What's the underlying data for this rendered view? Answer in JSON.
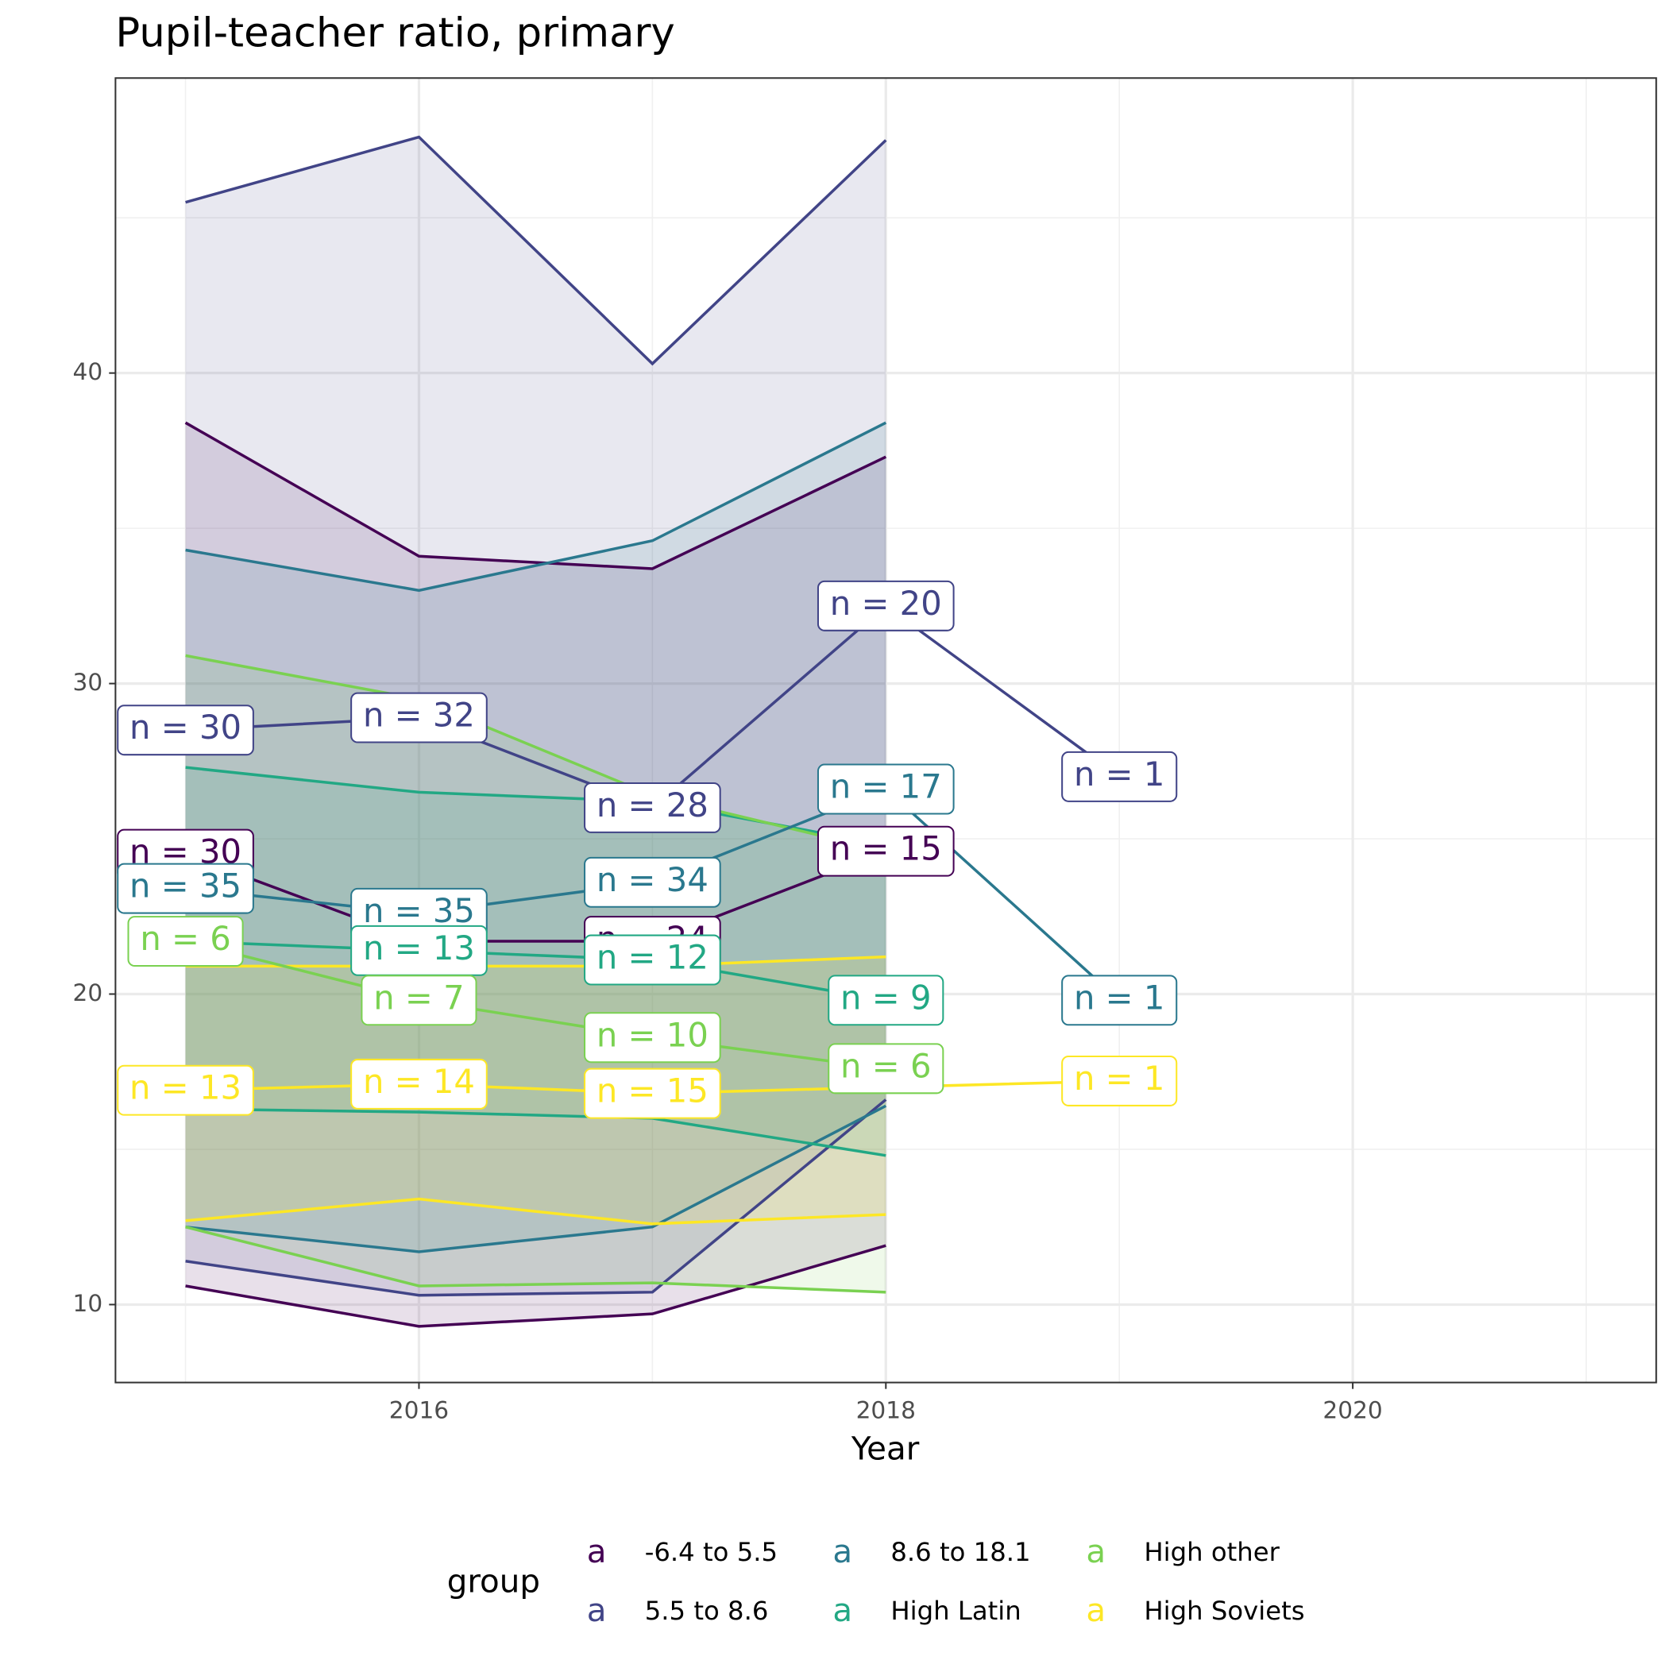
{
  "chart_data": {
    "type": "line",
    "title": "Pupil-teacher ratio, primary",
    "x_label": "Year",
    "x": [
      2015,
      2016,
      2017,
      2018,
      2019
    ],
    "xlim": [
      2014.7,
      2021.3
    ],
    "xticks": [
      2016,
      2018,
      2020
    ],
    "xminor": [
      2015,
      2017,
      2019,
      2021
    ],
    "ylim": [
      7.49,
      49.5
    ],
    "yticks": [
      10,
      20,
      30,
      40
    ],
    "yminor": [
      15,
      25,
      35,
      45
    ],
    "grid": true,
    "legend_title": "group",
    "legend_key_text": "a",
    "legend_position": "bottom",
    "series": [
      {
        "name": "-6.4 to 5.5",
        "color": "#440154",
        "values": [
          24.5,
          21.7,
          21.7,
          24.6,
          null
        ],
        "labels": [
          "n = 30",
          null,
          "n = 24",
          "n = 15",
          null
        ],
        "upper": [
          38.4,
          34.1,
          33.7,
          37.3,
          null
        ],
        "lower": [
          10.6,
          9.3,
          9.7,
          11.9,
          null
        ]
      },
      {
        "name": "5.5 to 8.6",
        "color": "#414487",
        "values": [
          28.5,
          28.9,
          26.0,
          32.5,
          27.0
        ],
        "labels": [
          "n = 30",
          "n = 32",
          "n = 28",
          "n = 20",
          "n = 1"
        ],
        "upper": [
          45.5,
          47.6,
          40.3,
          47.5,
          null
        ],
        "lower": [
          11.4,
          10.3,
          10.4,
          16.6,
          null
        ]
      },
      {
        "name": "8.6 to 18.1",
        "color": "#2A788E",
        "values": [
          23.4,
          22.6,
          23.6,
          26.6,
          19.8
        ],
        "labels": [
          "n = 35",
          "n = 35",
          "n = 34",
          "n = 17",
          "n = 1"
        ],
        "upper": [
          34.3,
          33.0,
          34.6,
          38.4,
          null
        ],
        "lower": [
          12.5,
          11.7,
          12.5,
          16.4,
          null
        ]
      },
      {
        "name": "High Latin",
        "color": "#22A884",
        "values": [
          21.7,
          21.4,
          21.1,
          19.8,
          null
        ],
        "labels": [
          null,
          "n = 13",
          "n = 12",
          "n = 9",
          null
        ],
        "upper": [
          27.3,
          26.5,
          26.2,
          24.8,
          null
        ],
        "lower": [
          16.3,
          16.2,
          16.0,
          14.8,
          null
        ]
      },
      {
        "name": "High other",
        "color": "#7AD151",
        "values": [
          21.7,
          19.8,
          18.6,
          17.6,
          null
        ],
        "labels": [
          "n = 6",
          "n = 7",
          "n = 10",
          "n = 6",
          null
        ],
        "upper": [
          30.9,
          29.5,
          26.4,
          24.6,
          null
        ],
        "lower": [
          12.5,
          10.6,
          10.7,
          10.4,
          null
        ]
      },
      {
        "name": "High Soviets",
        "color": "#FDE725",
        "values": [
          16.9,
          17.1,
          16.8,
          17.0,
          17.2
        ],
        "labels": [
          "n = 13",
          "n = 14",
          "n = 15",
          null,
          "n = 1"
        ],
        "upper": [
          20.9,
          20.9,
          20.9,
          21.2,
          null
        ],
        "lower": [
          12.7,
          13.4,
          12.6,
          12.9,
          null
        ]
      }
    ]
  }
}
